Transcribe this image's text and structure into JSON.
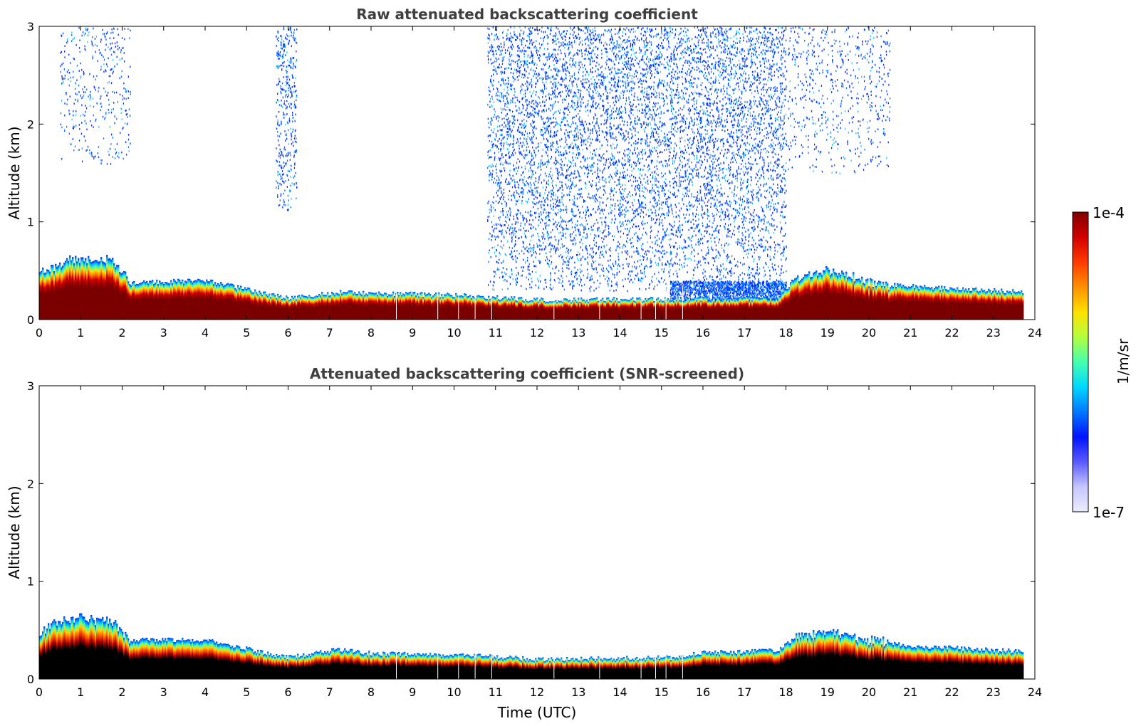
{
  "chart_data": [
    {
      "type": "heatmap",
      "id": "raw",
      "title": "Raw attenuated backscattering coefficient",
      "xlabel": "",
      "ylabel": "Altitude (km)",
      "xlim": [
        0,
        24
      ],
      "ylim": [
        0,
        3
      ],
      "x_ticks": [
        "0",
        "1",
        "2",
        "3",
        "4",
        "5",
        "6",
        "7",
        "8",
        "9",
        "10",
        "11",
        "12",
        "13",
        "14",
        "15",
        "16",
        "17",
        "18",
        "19",
        "20",
        "21",
        "22",
        "23",
        "24"
      ],
      "y_ticks": [
        "0",
        "1",
        "2",
        "3"
      ],
      "data_end_hour": 23.7,
      "boundary_layer_top_km": [
        [
          0,
          0.48
        ],
        [
          0.7,
          0.62
        ],
        [
          1.7,
          0.62
        ],
        [
          2.2,
          0.38
        ],
        [
          4,
          0.4
        ],
        [
          5.5,
          0.26
        ],
        [
          6,
          0.22
        ],
        [
          7.2,
          0.28
        ],
        [
          8,
          0.27
        ],
        [
          10,
          0.25
        ],
        [
          12,
          0.2
        ],
        [
          17.8,
          0.22
        ],
        [
          18.2,
          0.42
        ],
        [
          19,
          0.52
        ],
        [
          20,
          0.38
        ],
        [
          21,
          0.34
        ],
        [
          23.7,
          0.28
        ]
      ],
      "noise_regions": [
        {
          "x0": 0.5,
          "x1": 2.2,
          "y0": 1.6,
          "y1": 3.0,
          "density": "medium"
        },
        {
          "x0": 5.7,
          "x1": 6.2,
          "y0": 1.1,
          "y1": 3.0,
          "density": "high"
        },
        {
          "x0": 10.8,
          "x1": 18.0,
          "y0": 0.3,
          "y1": 3.0,
          "density": "high"
        },
        {
          "x0": 15.2,
          "x1": 18.0,
          "y0": 0.2,
          "y1": 0.4,
          "density": "very high"
        },
        {
          "x0": 18.0,
          "x1": 20.5,
          "y0": 1.5,
          "y1": 3.0,
          "density": "medium"
        }
      ],
      "gap_hours": [
        8.6,
        9.6,
        10.1,
        10.5,
        10.9,
        12.4,
        13.5,
        14.5,
        14.85,
        15.1,
        15.5
      ]
    },
    {
      "type": "heatmap",
      "id": "screened",
      "title": "Attenuated backscattering coefficient (SNR-screened)",
      "xlabel": "Time (UTC)",
      "ylabel": "Altitude (km)",
      "xlim": [
        0,
        24
      ],
      "ylim": [
        0,
        3
      ],
      "x_ticks": [
        "0",
        "1",
        "2",
        "3",
        "4",
        "5",
        "6",
        "7",
        "8",
        "9",
        "10",
        "11",
        "12",
        "13",
        "14",
        "15",
        "16",
        "17",
        "18",
        "19",
        "20",
        "21",
        "22",
        "23",
        "24"
      ],
      "y_ticks": [
        "0",
        "1",
        "2",
        "3"
      ],
      "data_end_hour": 23.7,
      "boundary_layer_top_km": [
        [
          0,
          0.45
        ],
        [
          0.3,
          0.58
        ],
        [
          0.7,
          0.62
        ],
        [
          1.7,
          0.6
        ],
        [
          2.2,
          0.4
        ],
        [
          4,
          0.4
        ],
        [
          5.5,
          0.26
        ],
        [
          6,
          0.22
        ],
        [
          7.2,
          0.3
        ],
        [
          8,
          0.26
        ],
        [
          10,
          0.25
        ],
        [
          12,
          0.2
        ],
        [
          15.3,
          0.22
        ],
        [
          16,
          0.27
        ],
        [
          17.8,
          0.29
        ],
        [
          18.2,
          0.42
        ],
        [
          19,
          0.5
        ],
        [
          20,
          0.4
        ],
        [
          21,
          0.34
        ],
        [
          23.7,
          0.28
        ]
      ],
      "gap_hours": [
        8.6,
        9.6,
        10.1,
        10.5,
        10.9,
        12.4,
        13.5,
        14.5,
        14.85,
        15.1,
        15.5
      ]
    }
  ],
  "colorbar": {
    "max_label": "1e-4",
    "min_label": "1e-7",
    "units_label": "1/m/sr",
    "stops": [
      "#800000",
      "#d10000",
      "#ff3a00",
      "#ff9100",
      "#ffe000",
      "#b4ff3c",
      "#45ffb0",
      "#00d8ff",
      "#0078ff",
      "#0014ff",
      "#5a5aff",
      "#c6c6ff",
      "#ececff"
    ]
  },
  "colors": {
    "black_core": "#000000",
    "maroon_core": "#7a0000",
    "title_gray": "#404040"
  }
}
